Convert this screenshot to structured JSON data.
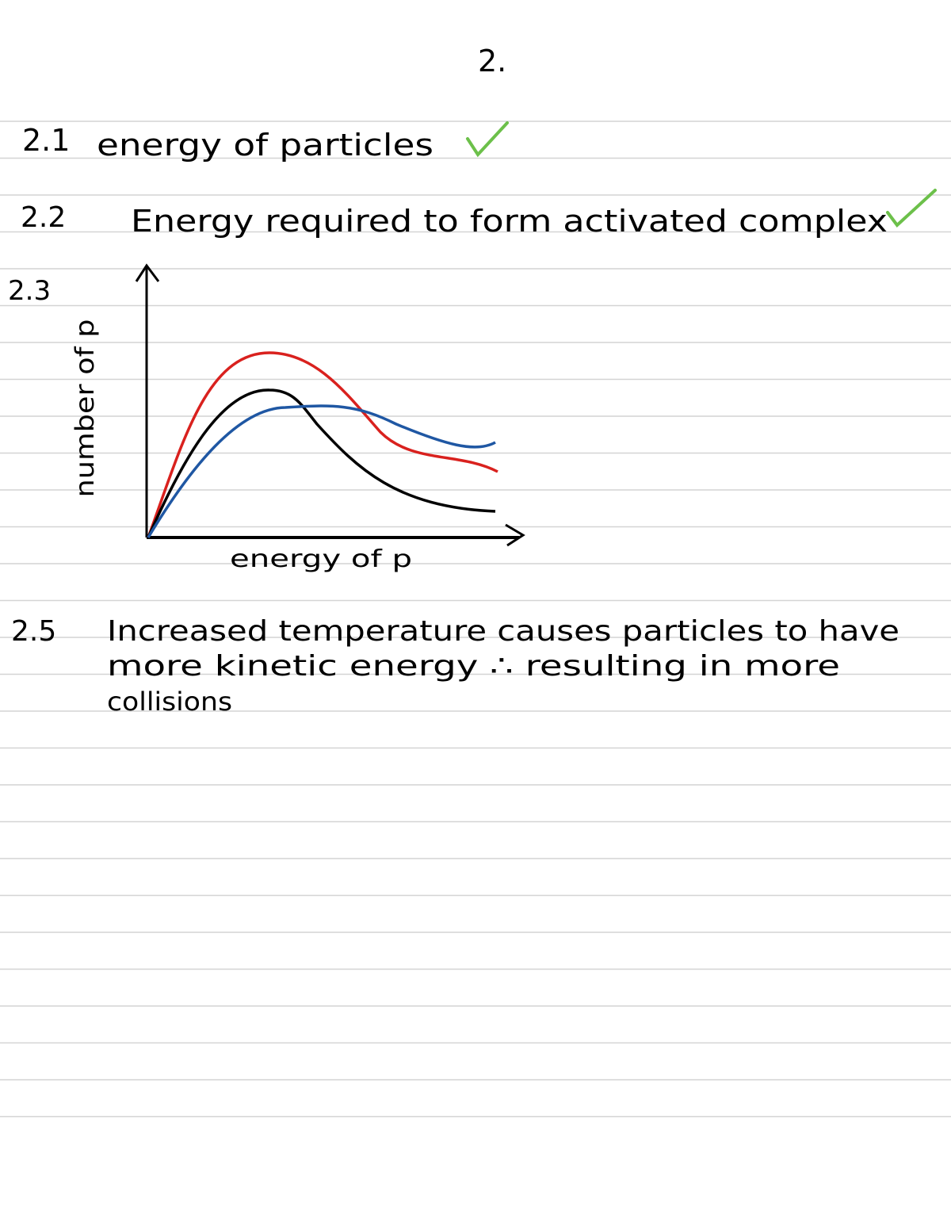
{
  "page_number": "2.",
  "items": [
    {
      "number": "2.1",
      "text": "energy of particles"
    },
    {
      "number": "2.2",
      "text": "Energy required to form activated complex"
    },
    {
      "number": "2.3",
      "sketch": {
        "y_label": "number of p",
        "x_label": "energy of p"
      }
    },
    {
      "number": "2.5",
      "lines": [
        "Increased temperature causes particles to have",
        "more kinetic energy ∴ resulting in more",
        "collisions"
      ]
    }
  ]
}
